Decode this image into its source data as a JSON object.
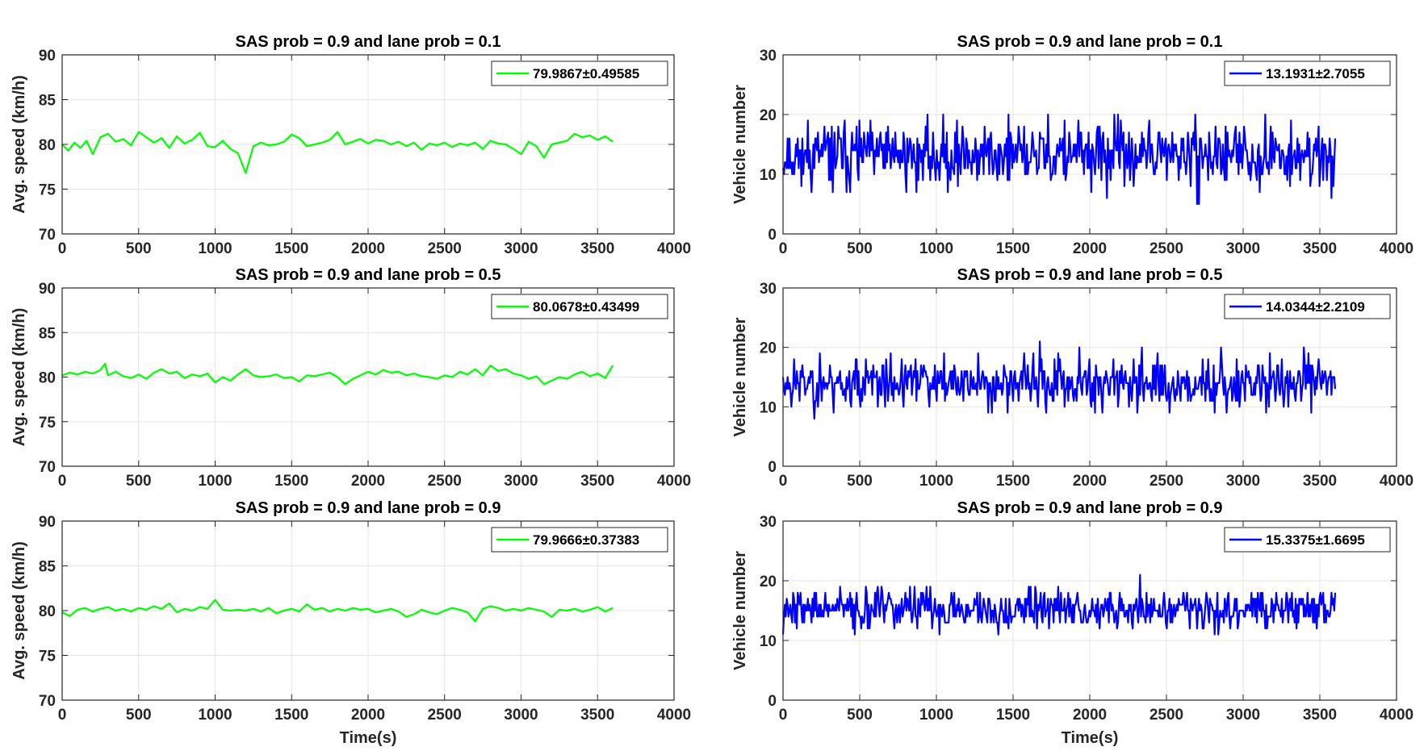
{
  "figure": {
    "background": "#ffffff"
  },
  "chart_data": [
    {
      "type": "line",
      "id": "speed-0.1",
      "title": "SAS prob = 0.9 and lane prob = 0.1",
      "xlabel": "",
      "ylabel": "Avg. speed (km/h)",
      "xlim": [
        0,
        4000
      ],
      "ylim": [
        70,
        90
      ],
      "xticks": [
        0,
        500,
        1000,
        1500,
        2000,
        2500,
        3000,
        3500,
        4000
      ],
      "yticks": [
        70,
        75,
        80,
        85,
        90
      ],
      "grid": true,
      "legend_position": "top-right",
      "series": [
        {
          "name": "79.9867±0.49585",
          "color": "#00ff00",
          "x": [
            0,
            40,
            80,
            120,
            160,
            200,
            250,
            300,
            350,
            400,
            450,
            500,
            550,
            600,
            650,
            700,
            750,
            800,
            850,
            900,
            950,
            1000,
            1050,
            1100,
            1150,
            1200,
            1250,
            1300,
            1350,
            1400,
            1450,
            1500,
            1550,
            1600,
            1650,
            1700,
            1750,
            1800,
            1850,
            1900,
            1950,
            2000,
            2050,
            2100,
            2150,
            2200,
            2250,
            2300,
            2350,
            2400,
            2450,
            2500,
            2550,
            2600,
            2650,
            2700,
            2750,
            2800,
            2850,
            2900,
            2950,
            3000,
            3050,
            3100,
            3150,
            3200,
            3250,
            3300,
            3350,
            3400,
            3450,
            3500,
            3550,
            3600
          ],
          "y": [
            80.0,
            79.3,
            80.2,
            79.6,
            80.4,
            78.9,
            80.8,
            81.2,
            80.3,
            80.6,
            79.9,
            81.4,
            80.8,
            80.2,
            80.7,
            79.6,
            80.9,
            80.1,
            80.5,
            81.3,
            79.8,
            79.7,
            80.4,
            79.5,
            79.0,
            76.8,
            79.8,
            80.2,
            79.9,
            80.0,
            80.3,
            81.1,
            80.7,
            79.8,
            80.0,
            80.2,
            80.5,
            81.4,
            80.0,
            80.3,
            80.6,
            80.1,
            80.5,
            80.4,
            80.0,
            80.3,
            79.8,
            80.2,
            79.4,
            80.1,
            79.9,
            80.2,
            79.7,
            80.1,
            79.9,
            80.2,
            79.5,
            80.4,
            80.1,
            80.0,
            79.5,
            78.9,
            80.3,
            79.8,
            78.5,
            80.0,
            80.2,
            80.4,
            81.2,
            80.8,
            81.0,
            80.5,
            80.9,
            80.3
          ]
        }
      ]
    },
    {
      "type": "line",
      "id": "count-0.1",
      "title": "SAS prob = 0.9 and lane prob = 0.1",
      "xlabel": "",
      "ylabel": "Vehicle number",
      "xlim": [
        0,
        4000
      ],
      "ylim": [
        0,
        30
      ],
      "xticks": [
        0,
        500,
        1000,
        1500,
        2000,
        2500,
        3000,
        3500,
        4000
      ],
      "yticks": [
        0,
        10,
        20,
        30
      ],
      "grid": true,
      "legend_position": "top-right",
      "series": [
        {
          "name": "13.1931±2.7055",
          "color": "#0000ff",
          "noise": {
            "x_start": 0,
            "x_end": 3600,
            "step": 6,
            "mean": 13.2,
            "sd": 2.7,
            "min": 5,
            "max": 22,
            "seed": 11
          }
        }
      ]
    },
    {
      "type": "line",
      "id": "speed-0.5",
      "title": "SAS prob = 0.9 and lane prob = 0.5",
      "xlabel": "",
      "ylabel": "Avg. speed (km/h)",
      "xlim": [
        0,
        4000
      ],
      "ylim": [
        70,
        90
      ],
      "xticks": [
        0,
        500,
        1000,
        1500,
        2000,
        2500,
        3000,
        3500,
        4000
      ],
      "yticks": [
        70,
        75,
        80,
        85,
        90
      ],
      "grid": true,
      "legend_position": "top-right",
      "series": [
        {
          "name": "80.0678±0.43499",
          "color": "#00ff00",
          "x": [
            0,
            50,
            100,
            150,
            200,
            250,
            280,
            300,
            350,
            400,
            450,
            500,
            550,
            600,
            650,
            700,
            750,
            800,
            850,
            900,
            950,
            1000,
            1050,
            1100,
            1150,
            1200,
            1250,
            1300,
            1350,
            1400,
            1450,
            1500,
            1550,
            1600,
            1650,
            1700,
            1750,
            1800,
            1850,
            1900,
            1950,
            2000,
            2050,
            2100,
            2150,
            2200,
            2250,
            2300,
            2350,
            2400,
            2450,
            2500,
            2550,
            2600,
            2650,
            2700,
            2750,
            2800,
            2850,
            2900,
            2950,
            3000,
            3050,
            3100,
            3150,
            3200,
            3250,
            3300,
            3350,
            3400,
            3450,
            3500,
            3550,
            3600
          ],
          "y": [
            80.2,
            80.5,
            80.3,
            80.6,
            80.4,
            80.8,
            81.5,
            80.2,
            80.6,
            80.1,
            79.9,
            80.3,
            79.8,
            80.5,
            80.9,
            80.4,
            80.6,
            79.9,
            80.3,
            80.1,
            80.4,
            79.4,
            80.0,
            79.6,
            80.3,
            80.9,
            80.2,
            80.0,
            80.1,
            80.3,
            79.9,
            80.0,
            79.5,
            80.2,
            80.1,
            80.3,
            80.5,
            80.0,
            79.2,
            79.8,
            80.2,
            80.6,
            80.3,
            80.8,
            80.5,
            80.6,
            80.2,
            80.4,
            80.1,
            80.0,
            79.8,
            80.2,
            80.0,
            80.6,
            80.3,
            80.9,
            80.2,
            81.3,
            80.7,
            80.9,
            80.4,
            80.2,
            79.8,
            80.1,
            79.2,
            79.6,
            80.0,
            79.8,
            80.3,
            80.6,
            80.1,
            80.4,
            79.9,
            81.3
          ]
        }
      ]
    },
    {
      "type": "line",
      "id": "count-0.5",
      "title": "SAS prob = 0.9 and lane prob = 0.5",
      "xlabel": "",
      "ylabel": "Vehicle number",
      "xlim": [
        0,
        4000
      ],
      "ylim": [
        0,
        30
      ],
      "xticks": [
        0,
        500,
        1000,
        1500,
        2000,
        2500,
        3000,
        3500,
        4000
      ],
      "yticks": [
        0,
        10,
        20,
        30
      ],
      "grid": true,
      "legend_position": "top-right",
      "series": [
        {
          "name": "14.0344±2.2109",
          "color": "#0000ff",
          "noise": {
            "x_start": 0,
            "x_end": 3600,
            "step": 6,
            "mean": 14.0,
            "sd": 2.2,
            "min": 6,
            "max": 21,
            "seed": 23
          }
        }
      ]
    },
    {
      "type": "line",
      "id": "speed-0.9",
      "title": "SAS prob = 0.9 and lane prob = 0.9",
      "xlabel": "Time(s)",
      "ylabel": "Avg. speed (km/h)",
      "xlim": [
        0,
        4000
      ],
      "ylim": [
        70,
        90
      ],
      "xticks": [
        0,
        500,
        1000,
        1500,
        2000,
        2500,
        3000,
        3500,
        4000
      ],
      "yticks": [
        70,
        75,
        80,
        85,
        90
      ],
      "grid": true,
      "legend_position": "top-right",
      "series": [
        {
          "name": "79.9666±0.37383",
          "color": "#00ff00",
          "x": [
            0,
            50,
            100,
            150,
            200,
            250,
            300,
            350,
            400,
            450,
            500,
            550,
            600,
            650,
            700,
            750,
            800,
            850,
            900,
            950,
            1000,
            1050,
            1100,
            1150,
            1200,
            1250,
            1300,
            1350,
            1400,
            1450,
            1500,
            1550,
            1600,
            1650,
            1700,
            1750,
            1800,
            1850,
            1900,
            1950,
            2000,
            2050,
            2100,
            2150,
            2200,
            2250,
            2300,
            2350,
            2400,
            2450,
            2500,
            2550,
            2600,
            2650,
            2700,
            2750,
            2800,
            2850,
            2900,
            2950,
            3000,
            3050,
            3100,
            3150,
            3200,
            3250,
            3300,
            3350,
            3400,
            3450,
            3500,
            3550,
            3600
          ],
          "y": [
            79.8,
            79.4,
            80.1,
            80.3,
            79.9,
            80.2,
            80.4,
            80.0,
            80.2,
            79.9,
            80.3,
            80.1,
            80.5,
            80.2,
            80.8,
            79.8,
            80.2,
            80.0,
            80.4,
            80.2,
            81.2,
            80.1,
            80.0,
            80.1,
            80.0,
            80.2,
            79.9,
            80.3,
            79.7,
            80.0,
            80.2,
            79.9,
            80.7,
            80.1,
            80.3,
            79.9,
            80.2,
            80.0,
            80.3,
            80.1,
            80.2,
            79.8,
            80.0,
            80.2,
            79.9,
            79.3,
            79.6,
            80.1,
            79.8,
            79.6,
            80.0,
            80.3,
            80.1,
            79.8,
            78.8,
            80.2,
            80.5,
            80.3,
            80.0,
            80.2,
            80.0,
            80.3,
            80.1,
            79.9,
            79.3,
            80.1,
            80.0,
            80.2,
            79.9,
            80.1,
            80.4,
            79.9,
            80.3
          ]
        }
      ]
    },
    {
      "type": "line",
      "id": "count-0.9",
      "title": "SAS prob = 0.9 and lane prob = 0.9",
      "xlabel": "Time(s)",
      "ylabel": "Vehicle number",
      "xlim": [
        0,
        4000
      ],
      "ylim": [
        0,
        30
      ],
      "xticks": [
        0,
        500,
        1000,
        1500,
        2000,
        2500,
        3000,
        3500,
        4000
      ],
      "yticks": [
        0,
        10,
        20,
        30
      ],
      "grid": true,
      "legend_position": "top-right",
      "series": [
        {
          "name": "15.3375±1.6695",
          "color": "#0000ff",
          "noise": {
            "x_start": 0,
            "x_end": 3600,
            "step": 6,
            "mean": 15.3,
            "sd": 1.7,
            "min": 9,
            "max": 21,
            "seed": 37
          }
        }
      ]
    }
  ]
}
